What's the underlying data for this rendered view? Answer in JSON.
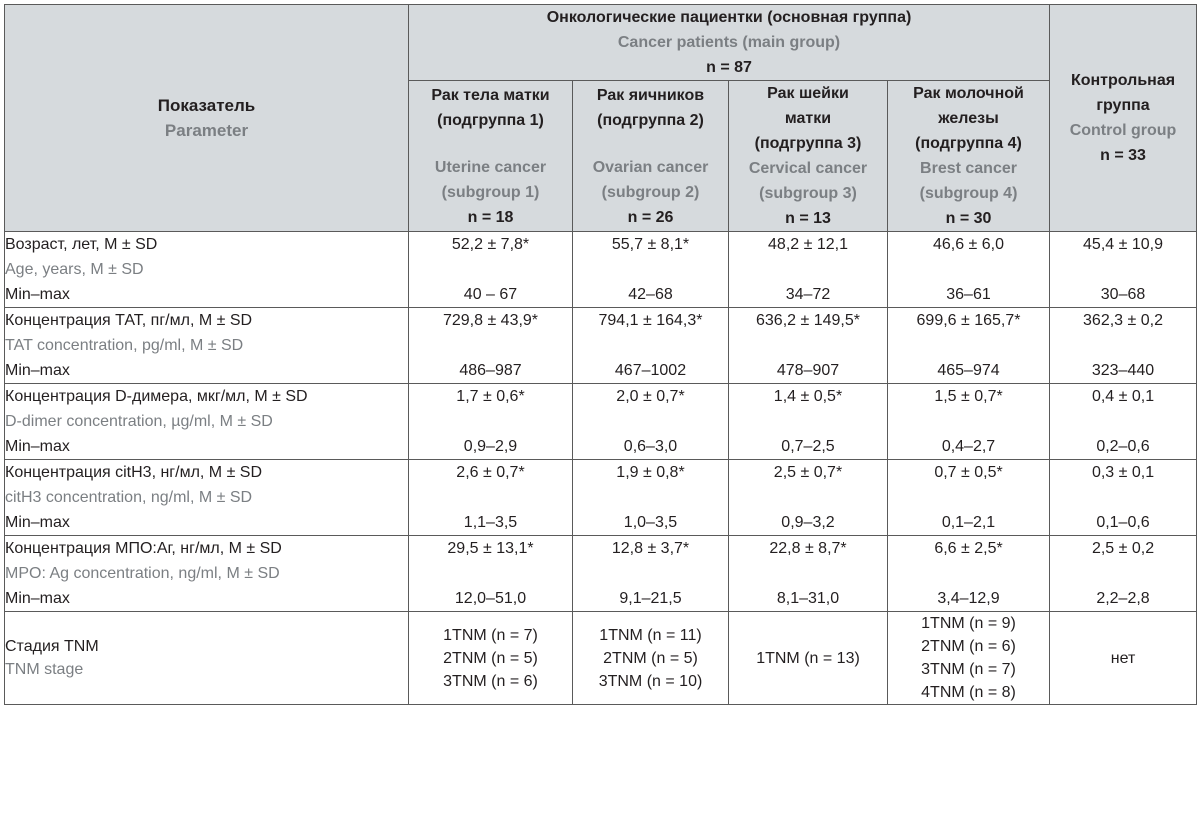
{
  "header": {
    "parameter_ru": "Показатель",
    "parameter_en": "Parameter",
    "group_ru": "Онкологические пациентки (основная группа)",
    "group_en": "Cancer patients (main group)",
    "group_n": "n = 87",
    "control": [
      "Контрольная",
      "группа"
    ],
    "control_en": "Control group",
    "control_n": "n = 33",
    "subgroups": [
      {
        "ru": [
          "Рак тела матки",
          "(подгруппа 1)",
          ""
        ],
        "en": [
          "Uterine cancer",
          "(subgroup 1)"
        ],
        "n": "n = 18"
      },
      {
        "ru": [
          "Рак яичников",
          "(подгруппа 2)",
          ""
        ],
        "en": [
          "Ovarian cancer",
          "(subgroup 2)"
        ],
        "n": "n = 26"
      },
      {
        "ru": [
          "Рак шейки",
          "матки",
          "(подгруппа 3)"
        ],
        "en": [
          "Cervical cancer",
          "(subgroup 3)"
        ],
        "n": "n = 13"
      },
      {
        "ru": [
          "Рак молочной",
          "железы",
          "(подгруппа 4)"
        ],
        "en": [
          "Brest cancer",
          "(subgroup 4)"
        ],
        "n": "n = 30"
      }
    ]
  },
  "rows": [
    {
      "ru": "Возраст, лет, M ± SD",
      "en": "Age, years, M ± SD",
      "mm": "Min–max",
      "cells": [
        [
          "52,2 ± 7,8*",
          "40 – 67"
        ],
        [
          "55,7 ± 8,1*",
          "42–68"
        ],
        [
          "48,2 ± 12,1",
          "34–72"
        ],
        [
          "46,6 ± 6,0",
          "36–61"
        ],
        [
          "45,4 ± 10,9",
          "30–68"
        ]
      ]
    },
    {
      "ru": "Концентрация ТАТ, пг/мл, M ± SD",
      "en": "TAT concentration, pg/ml, M ± SD",
      "mm": "Min–max",
      "cells": [
        [
          "729,8 ± 43,9*",
          "486–987"
        ],
        [
          "794,1 ± 164,3*",
          "467–1002"
        ],
        [
          "636,2 ± 149,5*",
          "478–907"
        ],
        [
          "699,6 ± 165,7*",
          "465–974"
        ],
        [
          "362,3 ± 0,2",
          "323–440"
        ]
      ]
    },
    {
      "ru": "Концентрация D-димера, мкг/мл, M ± SD",
      "en": "D-dimer concentration, µg/ml, M ± SD",
      "mm": "Min–max",
      "cells": [
        [
          "1,7 ± 0,6*",
          "0,9–2,9"
        ],
        [
          "2,0 ± 0,7*",
          "0,6–3,0"
        ],
        [
          "1,4 ± 0,5*",
          "0,7–2,5"
        ],
        [
          "1,5 ± 0,7*",
          "0,4–2,7"
        ],
        [
          "0,4 ± 0,1",
          "0,2–0,6"
        ]
      ]
    },
    {
      "ru": "Концентрация citH3, нг/мл, M ± SD",
      "en": "citH3 concentration, ng/ml, M ± SD",
      "mm": "Min–max",
      "cells": [
        [
          "2,6 ± 0,7*",
          "1,1–3,5"
        ],
        [
          "1,9 ± 0,8*",
          "1,0–3,5"
        ],
        [
          "2,5 ± 0,7*",
          "0,9–3,2"
        ],
        [
          "0,7 ± 0,5*",
          "0,1–2,1"
        ],
        [
          "0,3 ± 0,1",
          "0,1–0,6"
        ]
      ]
    },
    {
      "ru": "Концентрация МПО:Аг, нг/мл, M ± SD",
      "en": "MPO: Ag concentration, ng/ml, M ± SD",
      "mm": "Min–max",
      "cells": [
        [
          "29,5 ± 13,1*",
          "12,0–51,0"
        ],
        [
          "12,8 ± 3,7*",
          "9,1–21,5"
        ],
        [
          "22,8 ± 8,7*",
          "8,1–31,0"
        ],
        [
          "6,6 ± 2,5*",
          "3,4–12,9"
        ],
        [
          "2,5 ± 0,2",
          "2,2–2,8"
        ]
      ]
    }
  ],
  "tnm": {
    "ru": "Стадия TNM",
    "en": "TNM stage",
    "cells": [
      [
        "1TNM (n = 7)",
        "2TNM (n = 5)",
        "3TNM (n = 6)"
      ],
      [
        "1TNM (n = 11)",
        "2TNM (n = 5)",
        "3TNM (n = 10)"
      ],
      [
        "1TNM (n = 13)"
      ],
      [
        "1TNM (n = 9)",
        "2TNM (n = 6)",
        "3TNM (n = 7)",
        "4TNM (n = 8)"
      ],
      [
        "нет"
      ]
    ]
  }
}
